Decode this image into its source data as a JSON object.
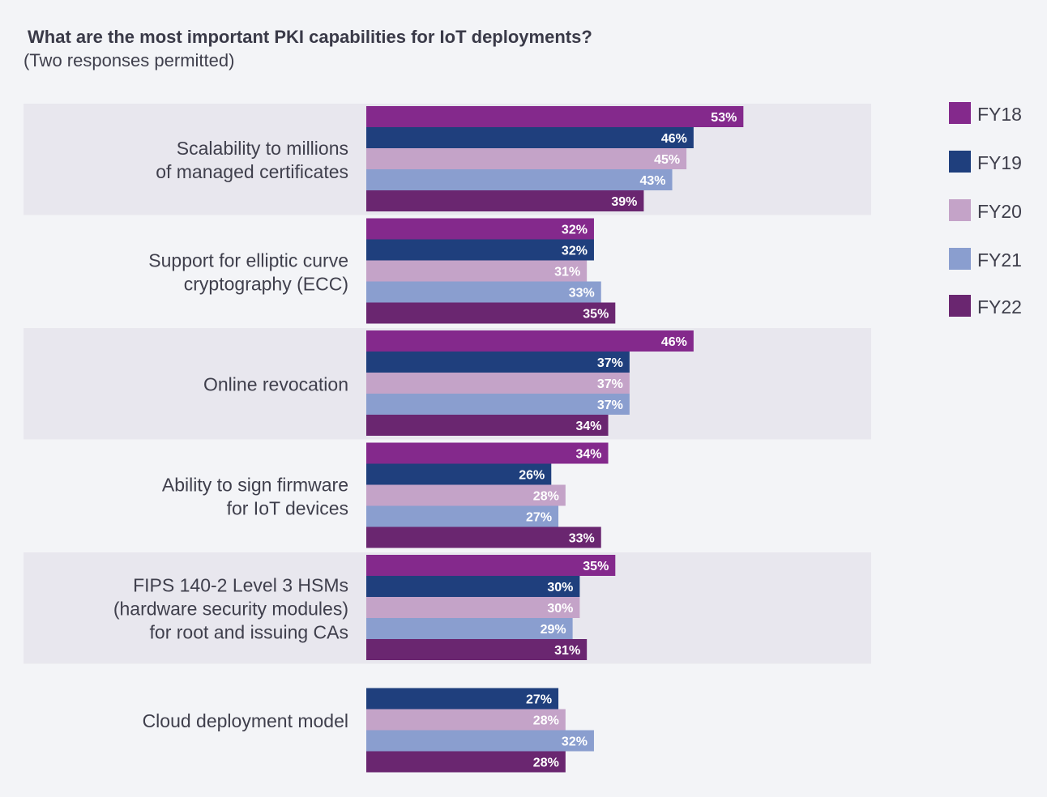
{
  "chart_data": {
    "type": "bar",
    "orientation": "horizontal",
    "title": "What are the most important PKI capabilities for IoT deployments?",
    "subtitle": "(Two responses permitted)",
    "categories": [
      "Scalability to millions\nof managed certificates",
      "Support for elliptic curve\ncryptography (ECC)",
      "Online revocation",
      "Ability to sign firmware\nfor IoT devices",
      "FIPS 140-2 Level 3 HSMs\n(hardware security modules)\nfor root and issuing CAs",
      "Cloud deployment model"
    ],
    "series": [
      {
        "name": "FY18",
        "color": "#84298c",
        "values": [
          53,
          32,
          46,
          34,
          35,
          null
        ]
      },
      {
        "name": "FY19",
        "color": "#1f3f7d",
        "values": [
          46,
          32,
          37,
          26,
          30,
          27
        ]
      },
      {
        "name": "FY20",
        "color": "#c4a3c8",
        "values": [
          45,
          31,
          37,
          28,
          30,
          28
        ]
      },
      {
        "name": "FY21",
        "color": "#8a9ecf",
        "values": [
          43,
          33,
          37,
          27,
          29,
          32
        ]
      },
      {
        "name": "FY22",
        "color": "#6a2670",
        "values": [
          39,
          35,
          34,
          33,
          31,
          28
        ]
      }
    ],
    "value_format": "{v}%",
    "legend": "right",
    "grid": false,
    "band_color": "#e8e7ee"
  }
}
